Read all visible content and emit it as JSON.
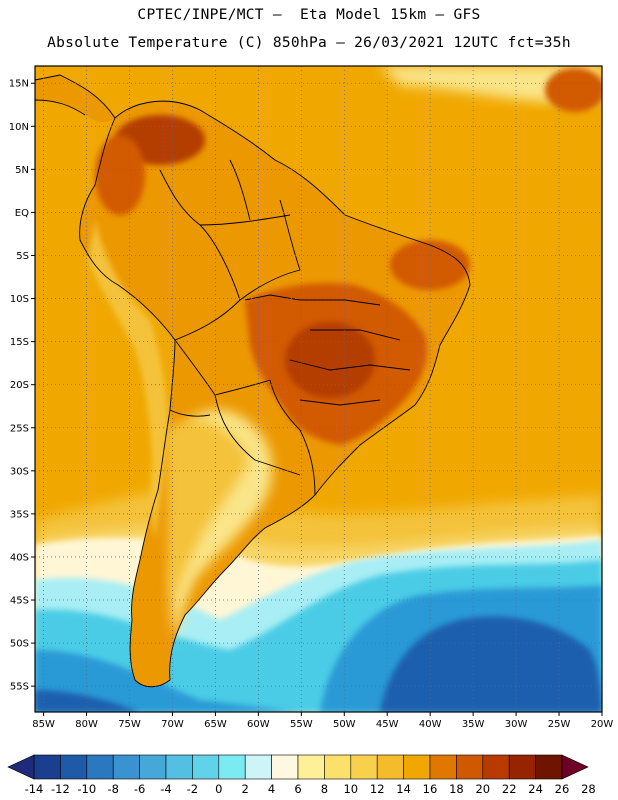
{
  "header": {
    "line1": "CPTEC/INPE/MCT –  Eta Model 15km – GFS",
    "line2": "Absolute Temperature (C) 850hPa – 26/03/2021 12UTC fct=35h"
  },
  "map": {
    "lon_range": [
      -86,
      -20
    ],
    "lat_range": [
      -58,
      17
    ],
    "lat_ticks": [
      {
        "value": 15,
        "label": "15N"
      },
      {
        "value": 10,
        "label": "10N"
      },
      {
        "value": 5,
        "label": "5N"
      },
      {
        "value": 0,
        "label": "EQ"
      },
      {
        "value": -5,
        "label": "5S"
      },
      {
        "value": -10,
        "label": "10S"
      },
      {
        "value": -15,
        "label": "15S"
      },
      {
        "value": -20,
        "label": "20S"
      },
      {
        "value": -25,
        "label": "25S"
      },
      {
        "value": -30,
        "label": "30S"
      },
      {
        "value": -35,
        "label": "35S"
      },
      {
        "value": -40,
        "label": "40S"
      },
      {
        "value": -45,
        "label": "45S"
      },
      {
        "value": -50,
        "label": "50S"
      },
      {
        "value": -55,
        "label": "55S"
      }
    ],
    "lon_ticks": [
      {
        "value": -85,
        "label": "85W"
      },
      {
        "value": -80,
        "label": "80W"
      },
      {
        "value": -75,
        "label": "75W"
      },
      {
        "value": -70,
        "label": "70W"
      },
      {
        "value": -65,
        "label": "65W"
      },
      {
        "value": -60,
        "label": "60W"
      },
      {
        "value": -55,
        "label": "55W"
      },
      {
        "value": -50,
        "label": "50W"
      },
      {
        "value": -45,
        "label": "45W"
      },
      {
        "value": -40,
        "label": "40W"
      },
      {
        "value": -35,
        "label": "35W"
      },
      {
        "value": -30,
        "label": "30W"
      },
      {
        "value": -25,
        "label": "25W"
      },
      {
        "value": -20,
        "label": "20W"
      }
    ],
    "fields": {
      "ocean": "#f0a800",
      "land": "#ec9800",
      "hot_core": "#d25a00",
      "hottest": "#b43c00",
      "mid_warm": "#f4c23a",
      "pale_yellow": "#fae58a",
      "cream": "#fff6d6",
      "light_cyan": "#a8eef4",
      "cyan": "#4ccce6",
      "blue_mid": "#2c9ad6",
      "blue_deep": "#1f5fae"
    }
  },
  "colorbar": {
    "colors": [
      "#1a3f8e",
      "#1f5aa8",
      "#2a78c0",
      "#3a92d0",
      "#46a8d8",
      "#52bfe3",
      "#60d2ea",
      "#7ceaf2",
      "#cdf4f8",
      "#fff8e0",
      "#fdf098",
      "#fbe06a",
      "#f8d04c",
      "#f4bc2a",
      "#f0a800",
      "#e07800",
      "#d05800",
      "#b83a00",
      "#962400",
      "#6e1400"
    ],
    "under_color": "#1f2a7a",
    "over_color": "#6e0028",
    "labels": [
      "-14",
      "-12",
      "-10",
      "-8",
      "-6",
      "-4",
      "-2",
      "0",
      "2",
      "4",
      "6",
      "8",
      "10",
      "12",
      "14",
      "16",
      "18",
      "20",
      "22",
      "24",
      "26",
      "28"
    ]
  }
}
